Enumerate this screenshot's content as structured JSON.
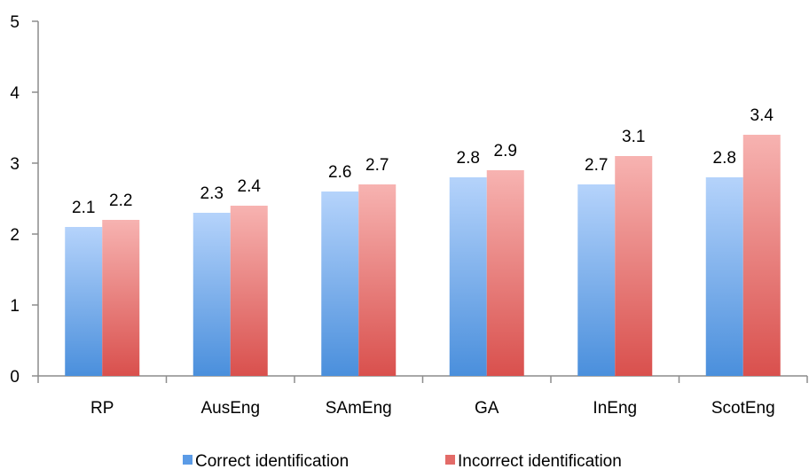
{
  "chart_data": {
    "type": "bar",
    "title": "",
    "xlabel": "",
    "ylabel": "",
    "categories": [
      "RP",
      "AusEng",
      "SAmEng",
      "GA",
      "InEng",
      "ScotEng"
    ],
    "series": [
      {
        "name": "Correct identification",
        "values": [
          2.1,
          2.3,
          2.6,
          2.8,
          2.7,
          2.8
        ],
        "data_labels": [
          "2.1",
          "2.3",
          "2.6",
          "2.8",
          "2.7",
          "2.8"
        ],
        "color_top": "#b5d3fb",
        "color_bottom": "#4a8fdc",
        "legend_color": "#5b9be6"
      },
      {
        "name": "Incorrect identification",
        "values": [
          2.2,
          2.4,
          2.7,
          2.9,
          3.1,
          3.4
        ],
        "data_labels": [
          "2.2",
          "2.4",
          "2.7",
          "2.9",
          "3.1",
          "3.4"
        ],
        "color_top": "#f7b3b1",
        "color_bottom": "#d9504d",
        "legend_color": "#e36b68"
      }
    ],
    "ylim": [
      0,
      5
    ],
    "yticks": [
      0,
      1,
      2,
      3,
      4,
      5
    ],
    "ytick_labels": [
      "0",
      "1",
      "2",
      "3",
      "4",
      "5"
    ],
    "grid": false,
    "legend_position": "bottom"
  }
}
